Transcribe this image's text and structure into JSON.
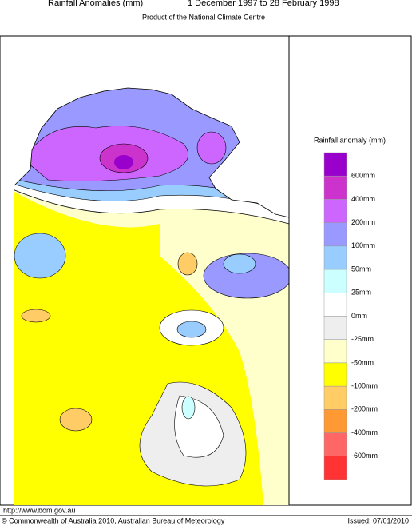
{
  "header": {
    "title": "Rainfall Anomalies (mm)",
    "period": "1 December 1997 to 28 February 1998",
    "subtitle": "Product of the National Climate Centre"
  },
  "legend": {
    "title": "Rainfall anomaly (mm)",
    "colors": [
      "#9900cc",
      "#cc33cc",
      "#cc66ff",
      "#9999ff",
      "#99ccff",
      "#ccffff",
      "#ffffff",
      "#eeeeee",
      "#ffffcc",
      "#ffff00",
      "#ffcc66",
      "#ff9933",
      "#ff6666",
      "#ff3333"
    ],
    "labels": [
      "600mm",
      "400mm",
      "200mm",
      "100mm",
      "50mm",
      "25mm",
      "0mm",
      "-25mm",
      "-50mm",
      "-100mm",
      "-200mm",
      "-400mm",
      "-600mm"
    ]
  },
  "footer": {
    "url": "http://www.bom.gov.au",
    "copyright": "© Commonwealth of Australia 2010, Australian Bureau of Meteorology",
    "issued": "Issued: 07/01/2010"
  }
}
